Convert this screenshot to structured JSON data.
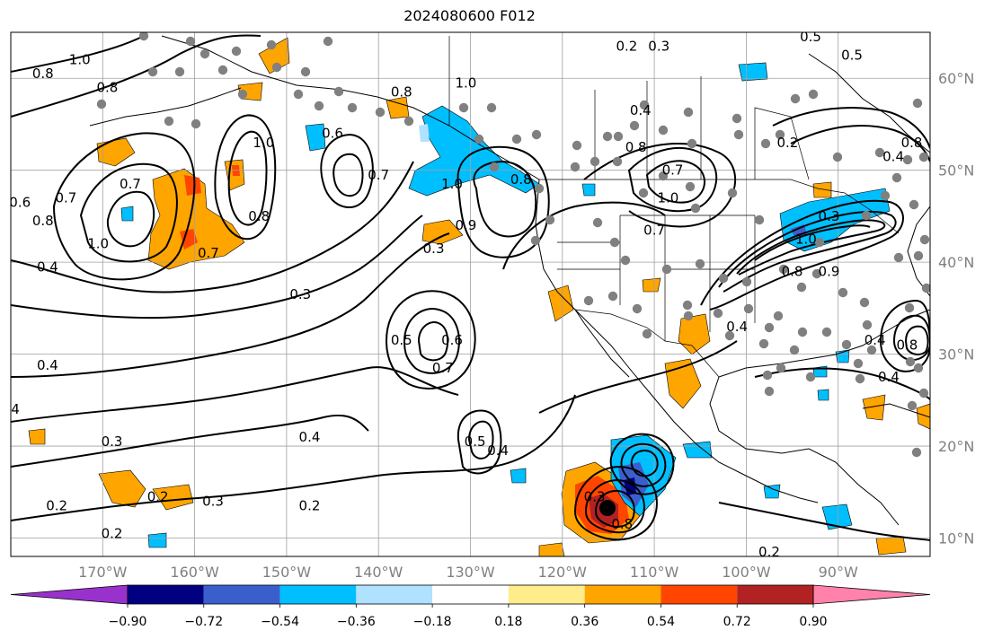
{
  "title": "2024080600 F012",
  "map": {
    "lon_range": [
      -180,
      -80
    ],
    "lat_range": [
      8,
      65
    ],
    "grid_lons": [
      -170,
      -160,
      -150,
      -140,
      -130,
      -120,
      -110,
      -100,
      -90
    ],
    "grid_lats": [
      10,
      20,
      30,
      40,
      50,
      60
    ],
    "lon_labels": [
      "170°W",
      "160°W",
      "150°W",
      "140°W",
      "130°W",
      "120°W",
      "110°W",
      "100°W",
      "90°W"
    ],
    "lat_labels": [
      "10°N",
      "20°N",
      "30°N",
      "40°N",
      "50°N",
      "60°N"
    ]
  },
  "contour_labels": [
    {
      "text": "1.0",
      "lon": -172.5,
      "lat": 62.0
    },
    {
      "text": "0.8",
      "lon": -176.5,
      "lat": 60.5
    },
    {
      "text": "0.8",
      "lon": -169.5,
      "lat": 59.0
    },
    {
      "text": "0.7",
      "lon": -174.0,
      "lat": 47.0
    },
    {
      "text": "0.6",
      "lon": -179.0,
      "lat": 46.5
    },
    {
      "text": "0.8",
      "lon": -176.5,
      "lat": 44.5
    },
    {
      "text": "1.0",
      "lon": -170.5,
      "lat": 42.0
    },
    {
      "text": "0.7",
      "lon": -167.0,
      "lat": 48.5
    },
    {
      "text": "0.4",
      "lon": -176.0,
      "lat": 39.5
    },
    {
      "text": "0.7",
      "lon": -158.5,
      "lat": 41.0
    },
    {
      "text": "0.8",
      "lon": -153.0,
      "lat": 45.0
    },
    {
      "text": "1.0",
      "lon": -152.5,
      "lat": 53.0
    },
    {
      "text": "0.6",
      "lon": -145.0,
      "lat": 54.0
    },
    {
      "text": "0.7",
      "lon": -140.0,
      "lat": 49.5
    },
    {
      "text": "1.0",
      "lon": -130.5,
      "lat": 59.5
    },
    {
      "text": "0.8",
      "lon": -137.5,
      "lat": 58.5
    },
    {
      "text": "1.0",
      "lon": -132.0,
      "lat": 48.5
    },
    {
      "text": "0.8",
      "lon": -124.5,
      "lat": 49.0
    },
    {
      "text": "0.9",
      "lon": -130.5,
      "lat": 44.0
    },
    {
      "text": "0.3",
      "lon": -134.0,
      "lat": 41.5
    },
    {
      "text": "0.3",
      "lon": -148.5,
      "lat": 36.5
    },
    {
      "text": "0.5",
      "lon": -137.5,
      "lat": 31.5
    },
    {
      "text": "0.6",
      "lon": -132.0,
      "lat": 31.5
    },
    {
      "text": "0.7",
      "lon": -133.0,
      "lat": 28.5
    },
    {
      "text": "0.4",
      "lon": -176.0,
      "lat": 28.8
    },
    {
      "text": "4",
      "lon": -179.5,
      "lat": 24.0
    },
    {
      "text": "0.3",
      "lon": -169.0,
      "lat": 20.5
    },
    {
      "text": "0.4",
      "lon": -147.5,
      "lat": 21.0
    },
    {
      "text": "0.5",
      "lon": -129.5,
      "lat": 20.5
    },
    {
      "text": "0.4",
      "lon": -127.0,
      "lat": 19.5
    },
    {
      "text": "0.2",
      "lon": -175.0,
      "lat": 13.5
    },
    {
      "text": "0.2",
      "lon": -164.0,
      "lat": 14.5
    },
    {
      "text": "0.3",
      "lon": -158.0,
      "lat": 14.0
    },
    {
      "text": "0.2",
      "lon": -169.0,
      "lat": 10.5
    },
    {
      "text": "0.2",
      "lon": -147.5,
      "lat": 13.5
    },
    {
      "text": "0.2",
      "lon": -113.0,
      "lat": 63.5
    },
    {
      "text": "0.3",
      "lon": -109.5,
      "lat": 63.5
    },
    {
      "text": "0.4",
      "lon": -111.5,
      "lat": 56.5
    },
    {
      "text": "0.8",
      "lon": -112.0,
      "lat": 52.5
    },
    {
      "text": "0.7",
      "lon": -108.0,
      "lat": 50.0
    },
    {
      "text": "1.0",
      "lon": -108.5,
      "lat": 47.0
    },
    {
      "text": "0.7",
      "lon": -110.0,
      "lat": 43.5
    },
    {
      "text": "0.2",
      "lon": -95.5,
      "lat": 53.0
    },
    {
      "text": "0.5",
      "lon": -93.0,
      "lat": 64.5
    },
    {
      "text": "0.5",
      "lon": -88.5,
      "lat": 62.5
    },
    {
      "text": "0.4",
      "lon": -84.0,
      "lat": 51.5
    },
    {
      "text": "0.8",
      "lon": -82.0,
      "lat": 53.0
    },
    {
      "text": "0.3",
      "lon": -91.0,
      "lat": 45.0
    },
    {
      "text": "1.0",
      "lon": -93.5,
      "lat": 42.5
    },
    {
      "text": "0.8",
      "lon": -95.0,
      "lat": 39.0
    },
    {
      "text": "0.9",
      "lon": -91.0,
      "lat": 39.0
    },
    {
      "text": "0.4",
      "lon": -101.0,
      "lat": 33.0
    },
    {
      "text": "0.4",
      "lon": -84.5,
      "lat": 27.5
    },
    {
      "text": "0.8",
      "lon": -82.5,
      "lat": 31.0
    },
    {
      "text": "0.4",
      "lon": -86.0,
      "lat": 31.5
    },
    {
      "text": "0.2",
      "lon": -97.5,
      "lat": 8.5
    },
    {
      "text": "0.3",
      "lon": -116.5,
      "lat": 14.5
    },
    {
      "text": "0.8",
      "lon": -113.5,
      "lat": 11.5
    }
  ],
  "colorbar": {
    "ticks": [
      "−0.90",
      "−0.72",
      "−0.54",
      "−0.36",
      "−0.18",
      "0.18",
      "0.36",
      "0.54",
      "0.72",
      "0.90"
    ],
    "colors": [
      "#9932cc",
      "#000080",
      "#3a5fcd",
      "#00bfff",
      "#b0e2ff",
      "#ffffff",
      "#ffec8b",
      "#ffa500",
      "#ff4500",
      "#b22222",
      "#ff82ab"
    ]
  }
}
